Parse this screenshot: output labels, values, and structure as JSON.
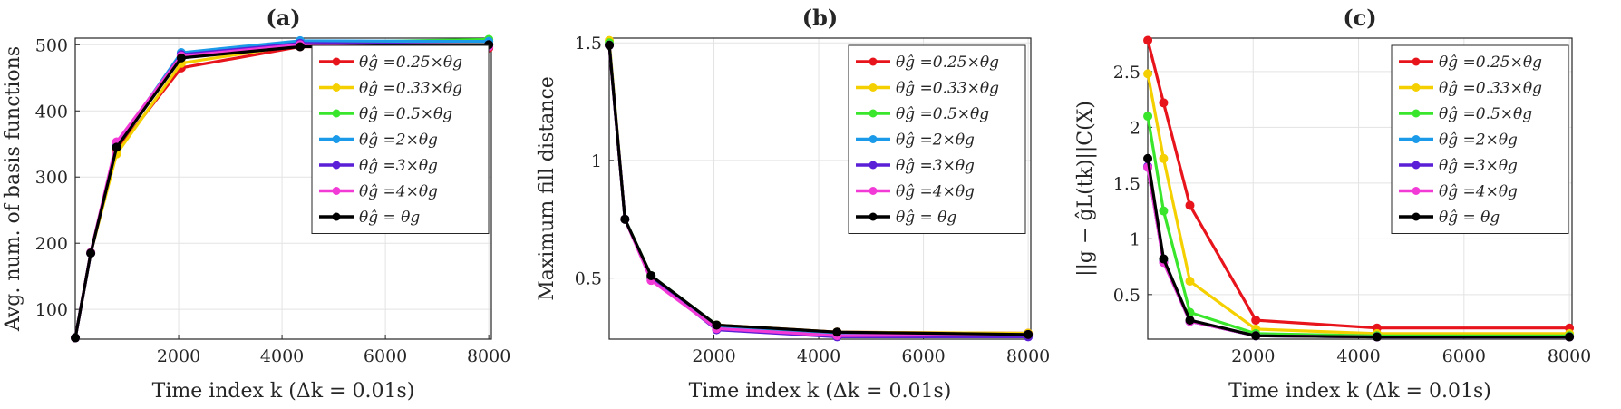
{
  "figure": {
    "xlabel": "Time index k (Δk = 0.01s)"
  },
  "colors": {
    "0.25": "#e8141c",
    "0.33": "#f5d000",
    "0.5": "#39e62b",
    "2": "#1a9ae8",
    "3": "#5a1fd6",
    "4": "#f23ad6",
    "1": "#000000"
  },
  "legend_entries": [
    "θĝ =0.25×θg",
    "θĝ =0.33×θg",
    "θĝ =0.5×θg",
    "θĝ =2×θg",
    "θĝ =3×θg",
    "θĝ =4×θg",
    "θĝ = θg"
  ],
  "chart_data": [
    {
      "type": "line",
      "title": "(a)",
      "xlabel": "Time index k (Δk = 0.01s)",
      "ylabel": "Avg. num. of basis functions",
      "xlim": [
        0,
        8050
      ],
      "ylim": [
        55,
        510
      ],
      "xticks": [
        2000,
        4000,
        6000,
        8000
      ],
      "yticks": [
        100,
        200,
        300,
        400,
        500
      ],
      "grid": true,
      "legend_position": "top-right",
      "x": [
        1,
        300,
        800,
        2050,
        4350,
        8000
      ],
      "series": [
        {
          "name": "θĝ =0.25×θg",
          "color_key": "0.25",
          "values": [
            57,
            185,
            340,
            465,
            497,
            495
          ]
        },
        {
          "name": "θĝ =0.33×θg",
          "color_key": "0.33",
          "values": [
            57,
            185,
            335,
            472,
            500,
            505
          ]
        },
        {
          "name": "θĝ =0.5×θg",
          "color_key": "0.5",
          "values": [
            57,
            186,
            345,
            482,
            503,
            508
          ]
        },
        {
          "name": "θĝ =2×θg",
          "color_key": "2",
          "values": [
            57,
            185,
            348,
            488,
            506,
            505
          ]
        },
        {
          "name": "θĝ =3×θg",
          "color_key": "3",
          "values": [
            57,
            185,
            346,
            485,
            502,
            500
          ]
        },
        {
          "name": "θĝ =4×θg",
          "color_key": "4",
          "values": [
            57,
            186,
            353,
            483,
            500,
            497
          ]
        },
        {
          "name": "θĝ = θg",
          "color_key": "1",
          "values": [
            57,
            185,
            345,
            480,
            497,
            500
          ]
        }
      ]
    },
    {
      "type": "line",
      "title": "(b)",
      "xlabel": "Time index k (Δk = 0.01s)",
      "ylabel": "Maximum fill distance",
      "xlim": [
        0,
        8050
      ],
      "ylim": [
        0.24,
        1.52
      ],
      "xticks": [
        2000,
        4000,
        6000,
        8000
      ],
      "yticks": [
        0.5,
        1,
        1.5
      ],
      "grid": true,
      "legend_position": "top-right",
      "x": [
        1,
        300,
        800,
        2050,
        4350,
        8000
      ],
      "series": [
        {
          "name": "θĝ =0.25×θg",
          "color_key": "0.25",
          "values": [
            1.49,
            0.75,
            0.5,
            0.3,
            0.27,
            0.265
          ]
        },
        {
          "name": "θĝ =0.33×θg",
          "color_key": "0.33",
          "values": [
            1.51,
            0.75,
            0.5,
            0.3,
            0.27,
            0.265
          ]
        },
        {
          "name": "θĝ =0.5×θg",
          "color_key": "0.5",
          "values": [
            1.5,
            0.75,
            0.51,
            0.3,
            0.265,
            0.26
          ]
        },
        {
          "name": "θĝ =2×θg",
          "color_key": "2",
          "values": [
            1.49,
            0.75,
            0.5,
            0.29,
            0.26,
            0.255
          ]
        },
        {
          "name": "θĝ =3×θg",
          "color_key": "3",
          "values": [
            1.49,
            0.75,
            0.5,
            0.28,
            0.25,
            0.25
          ]
        },
        {
          "name": "θĝ =4×θg",
          "color_key": "4",
          "values": [
            1.49,
            0.75,
            0.49,
            0.285,
            0.255,
            0.26
          ]
        },
        {
          "name": "θĝ = θg",
          "color_key": "1",
          "values": [
            1.49,
            0.75,
            0.51,
            0.3,
            0.27,
            0.26
          ]
        }
      ]
    },
    {
      "type": "line",
      "title": "(c)",
      "xlabel": "Time index k (Δk = 0.01s)",
      "ylabel": "||g − ĝL(tk)||C(X)",
      "xlim": [
        0,
        8050
      ],
      "ylim": [
        0.1,
        2.8
      ],
      "xticks": [
        2000,
        4000,
        6000,
        8000
      ],
      "yticks": [
        0.5,
        1,
        1.5,
        2,
        2.5
      ],
      "yticklabels": [
        "0.5",
        "1",
        "1.5",
        "2",
        "2.5"
      ],
      "grid": true,
      "legend_position": "top-right",
      "x": [
        1,
        300,
        800,
        2050,
        4350,
        8000
      ],
      "series": [
        {
          "name": "θĝ =0.25×θg",
          "color_key": "0.25",
          "values": [
            2.78,
            2.22,
            1.3,
            0.27,
            0.2,
            0.2
          ]
        },
        {
          "name": "θĝ =0.33×θg",
          "color_key": "0.33",
          "values": [
            2.48,
            1.72,
            0.62,
            0.19,
            0.15,
            0.15
          ]
        },
        {
          "name": "θĝ =0.5×θg",
          "color_key": "0.5",
          "values": [
            2.1,
            1.25,
            0.34,
            0.15,
            0.13,
            0.13
          ]
        },
        {
          "name": "θĝ =2×θg",
          "color_key": "2",
          "values": [
            1.64,
            0.8,
            0.26,
            0.13,
            0.12,
            0.12
          ]
        },
        {
          "name": "θĝ =3×θg",
          "color_key": "3",
          "values": [
            1.65,
            0.79,
            0.26,
            0.13,
            0.12,
            0.12
          ]
        },
        {
          "name": "θĝ =4×θg",
          "color_key": "4",
          "values": [
            1.64,
            0.79,
            0.26,
            0.13,
            0.12,
            0.12
          ]
        },
        {
          "name": "θĝ = θg",
          "color_key": "1",
          "values": [
            1.72,
            0.82,
            0.27,
            0.13,
            0.12,
            0.12
          ]
        }
      ]
    }
  ]
}
